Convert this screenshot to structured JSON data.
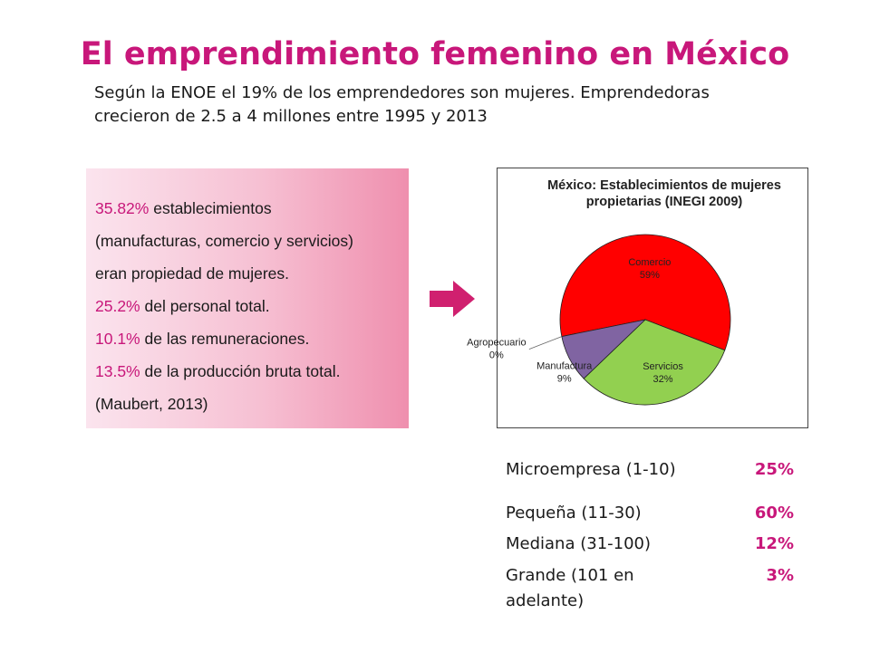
{
  "slide": {
    "title": "El emprendimiento femenino en México",
    "subtitle": "Según la ENOE el 19% de los emprendedores son mujeres. Emprendedoras crecieron de 2.5 a 4 millones entre 1995 y 2013"
  },
  "stats": {
    "line1_pct": "35.82%",
    "line1_text": " establecimientos",
    "line2_text": "(manufacturas, comercio y servicios)",
    "line3_text": "eran propiedad  de mujeres.",
    "line4_pct": "25.2%",
    "line4_text": " del personal total.",
    "line5_pct": "10.1%",
    "line5_text": " de las remuneraciones.",
    "line6_pct": "13.5%",
    "line6_text": " de la producción bruta total.",
    "line7_text": "(Maubert, 2013)"
  },
  "colors": {
    "accent": "#c8177a",
    "comercio": "#ff0000",
    "servicios": "#92d050",
    "manufactura": "#8064a2",
    "agropecuario": "#4f81bd"
  },
  "chart_data": {
    "type": "pie",
    "title": "México: Establecimientos de mujeres propietarias (INEGI 2009)",
    "labels": [
      "Comercio",
      "Servicios",
      "Manufactura",
      "Agropecuario"
    ],
    "values": [
      59,
      32,
      9,
      0
    ],
    "value_labels": [
      "59%",
      "32%",
      "9%",
      "0%"
    ]
  },
  "size_table": {
    "rows": [
      {
        "label": "Microempresa (1-10)",
        "value": "25%"
      },
      {
        "label": "Pequeña (11-30)",
        "value": "60%"
      },
      {
        "label": "Mediana (31-100)",
        "value": "12%"
      },
      {
        "label_line1": "Grande (101 en",
        "label_line2": "adelante)",
        "value": "3%"
      }
    ]
  }
}
